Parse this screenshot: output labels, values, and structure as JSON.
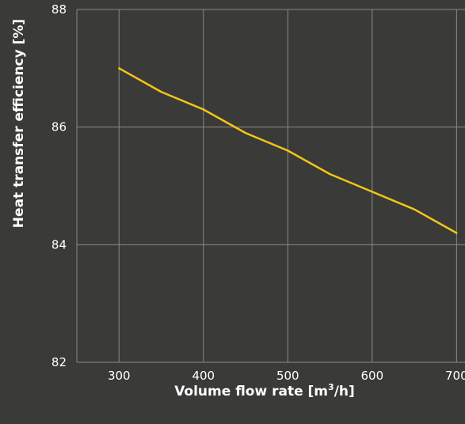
{
  "chart_data": {
    "type": "line",
    "x": [
      300,
      350,
      400,
      450,
      500,
      550,
      600,
      650,
      700
    ],
    "series": [
      {
        "values": [
          87.0,
          86.6,
          86.3,
          85.9,
          85.6,
          85.2,
          84.9,
          84.6,
          84.2
        ]
      }
    ],
    "xticks": [
      "300",
      "400",
      "500",
      "600",
      "700"
    ],
    "yticks": [
      "82",
      "84",
      "86",
      "88"
    ],
    "xlabel": "Volume flow rate [m",
    "xlabel_sup": "3",
    "xlabel_tail": "/h]",
    "ylabel": "Heat transfer efficiency [%]",
    "xlim": [
      250,
      710
    ],
    "ylim": [
      82,
      88
    ],
    "grid": true,
    "colors": {
      "background": "#3a3a38",
      "grid": "#8a8a86",
      "line": "#f5c518",
      "text": "#ffffff"
    }
  }
}
